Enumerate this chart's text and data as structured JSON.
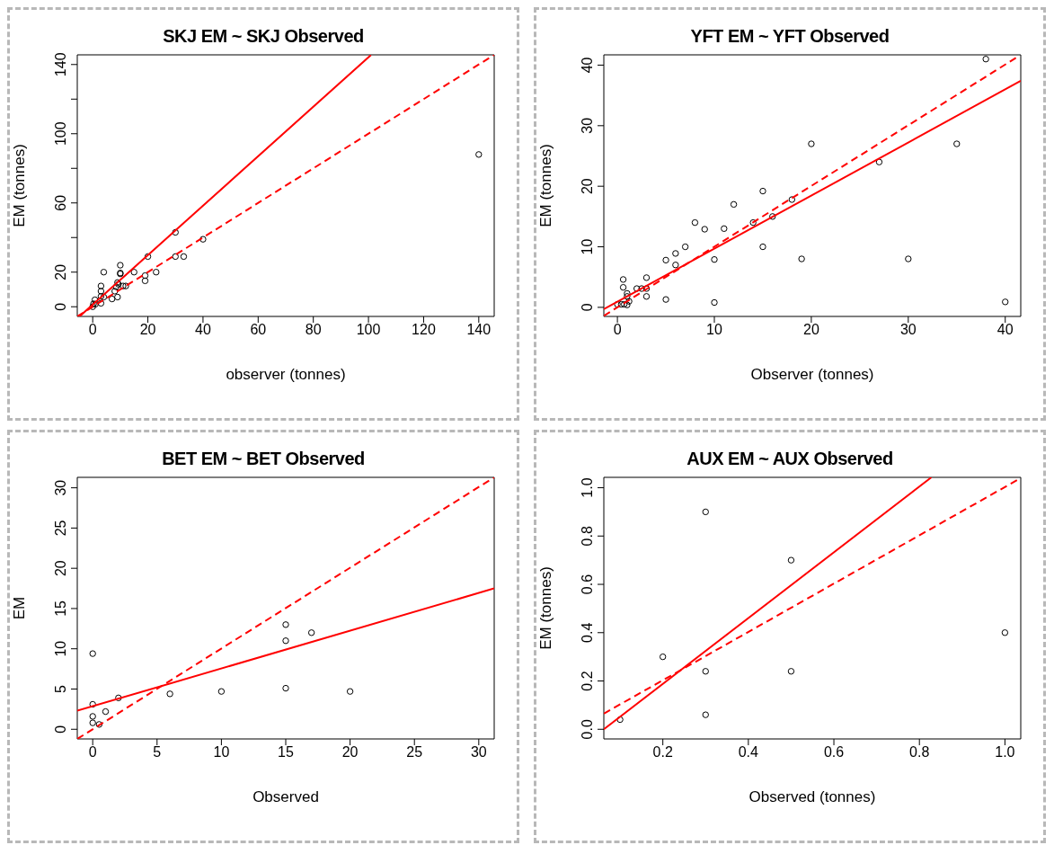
{
  "chart_data": [
    {
      "type": "scatter",
      "title": "SKJ EM ~ SKJ Observed",
      "xlabel": "observer (tonnes)",
      "ylabel": "EM (tonnes)",
      "xlim": [
        -5.6,
        145.6
      ],
      "ylim": [
        -5.6,
        145.6
      ],
      "xticks": [
        0,
        20,
        40,
        60,
        80,
        100,
        120,
        140
      ],
      "yticks": [
        0,
        20,
        {
          "value": 40,
          "label": null
        },
        60,
        {
          "value": 80,
          "label": null
        },
        100,
        {
          "value": 120,
          "label": null
        },
        140
      ],
      "series": [
        {
          "type": "scatter",
          "marker": "circle",
          "color": "#000000",
          "x": [
            140,
            30,
            40,
            20,
            30,
            33,
            23,
            15,
            19,
            19,
            10,
            10,
            10,
            4,
            3,
            3,
            3,
            9,
            9.3,
            11,
            12,
            9,
            7,
            8,
            4,
            3,
            0.8,
            0.3,
            0,
            1,
            8.5
          ],
          "values": [
            88,
            43,
            39,
            29,
            29,
            29,
            20,
            20,
            18,
            15,
            24,
            19.5,
            19,
            20,
            12,
            9,
            6,
            14,
            13,
            12,
            12,
            5.6,
            4.5,
            9,
            5.6,
            2,
            4,
            1.7,
            0,
            1.5,
            11.5
          ]
        },
        {
          "type": "line",
          "line_style": "solid",
          "marker": "none",
          "color": "#ff0000",
          "x": [
            -4.7,
            100.9
          ],
          "values": [
            -5.5,
            145.5
          ]
        },
        {
          "type": "line",
          "line_style": "dashed",
          "marker": "none",
          "color": "#ff0000",
          "x": [
            -5.6,
            145.6
          ],
          "values": [
            -5.6,
            145.6
          ]
        }
      ]
    },
    {
      "type": "scatter",
      "title": "YFT EM ~ YFT Observed",
      "xlabel": "Observer (tonnes)",
      "ylabel": "EM (tonnes)",
      "xlim": [
        -1.4,
        41.6
      ],
      "ylim": [
        -1.5,
        41.7
      ],
      "xticks": [
        0,
        10,
        20,
        30,
        40
      ],
      "yticks": [
        0,
        10,
        20,
        30,
        40
      ],
      "series": [
        {
          "type": "scatter",
          "marker": "circle",
          "color": "#000000",
          "x": [
            38,
            20,
            35,
            27,
            15,
            18,
            12,
            8,
            14,
            16,
            9,
            11,
            7,
            15,
            6,
            5,
            10,
            19,
            30,
            6,
            0.6,
            3,
            0.6,
            2,
            2.5,
            3,
            1,
            1,
            3,
            5,
            10,
            40,
            1.2,
            0,
            0.4,
            0.7,
            1
          ],
          "values": [
            41,
            27,
            27,
            24,
            19.2,
            17.8,
            17,
            14,
            14,
            15,
            12.9,
            13,
            10,
            10,
            8.9,
            7.8,
            7.9,
            8,
            8,
            7,
            4.6,
            4.9,
            3.3,
            3.1,
            3.1,
            3.1,
            2.3,
            1.8,
            1.8,
            1.3,
            0.8,
            0.9,
            1,
            0.5,
            0.5,
            0.5,
            0.4
          ]
        },
        {
          "type": "line",
          "line_style": "solid",
          "marker": "none",
          "color": "#ff0000",
          "x": [
            -1.4,
            41.6
          ],
          "values": [
            -0.3,
            37.4
          ]
        },
        {
          "type": "line",
          "line_style": "dashed",
          "marker": "none",
          "color": "#ff0000",
          "x": [
            -1.4,
            41.2
          ],
          "values": [
            -1.4,
            41.3
          ]
        }
      ]
    },
    {
      "type": "scatter",
      "title": "BET EM ~ BET Observed",
      "xlabel": "Observed",
      "ylabel": "EM",
      "xlim": [
        -1.2,
        31.2
      ],
      "ylim": [
        -1.2,
        31.3
      ],
      "xticks": [
        0,
        5,
        10,
        15,
        20,
        25,
        30
      ],
      "yticks": [
        0,
        5,
        10,
        15,
        20,
        25,
        30
      ],
      "series": [
        {
          "type": "scatter",
          "marker": "circle",
          "color": "#000000",
          "x": [
            0,
            0,
            0,
            0,
            0.5,
            1,
            2,
            6,
            10,
            15,
            15,
            15,
            17,
            20
          ],
          "values": [
            9.4,
            3.1,
            1.6,
            0.8,
            0.6,
            2.2,
            3.9,
            4.4,
            4.7,
            13,
            11,
            5.1,
            12,
            4.7
          ]
        },
        {
          "type": "line",
          "line_style": "solid",
          "marker": "none",
          "color": "#ff0000",
          "x": [
            -1.2,
            31.2
          ],
          "values": [
            2.3,
            17.5
          ]
        },
        {
          "type": "line",
          "line_style": "dashed",
          "marker": "none",
          "color": "#ff0000",
          "x": [
            -1.2,
            31.2
          ],
          "values": [
            -1.2,
            31.3
          ]
        }
      ]
    },
    {
      "type": "scatter",
      "title": "AUX EM ~ AUX Observed",
      "xlabel": "Observed (tonnes)",
      "ylabel": "EM (tonnes)",
      "xlim": [
        0.062,
        1.037
      ],
      "ylim": [
        -0.04,
        1.043
      ],
      "xticks": [
        {
          "value": 0.2,
          "label": "0.2"
        },
        {
          "value": 0.4,
          "label": "0.4"
        },
        {
          "value": 0.6,
          "label": "0.6"
        },
        {
          "value": 0.8,
          "label": "0.8"
        },
        {
          "value": 1,
          "label": "1.0"
        }
      ],
      "yticks": [
        {
          "value": 0,
          "label": "0.0"
        },
        {
          "value": 0.2,
          "label": "0.2"
        },
        {
          "value": 0.4,
          "label": "0.4"
        },
        {
          "value": 0.6,
          "label": "0.6"
        },
        {
          "value": 0.8,
          "label": "0.8"
        },
        {
          "value": 1,
          "label": "1.0"
        }
      ],
      "series": [
        {
          "type": "scatter",
          "marker": "circle",
          "color": "#000000",
          "x": [
            0.1,
            0.2,
            0.3,
            0.3,
            0.3,
            0.5,
            0.5,
            1
          ],
          "values": [
            0.04,
            0.3,
            0.9,
            0.24,
            0.06,
            0.7,
            0.24,
            0.4
          ]
        },
        {
          "type": "line",
          "line_style": "solid",
          "marker": "none",
          "color": "#ff0000",
          "x": [
            0.062,
            0.828
          ],
          "values": [
            0,
            1.043
          ]
        },
        {
          "type": "line",
          "line_style": "dashed",
          "marker": "none",
          "color": "#ff0000",
          "x": [
            0.062,
            1.037
          ],
          "values": [
            0.065,
            1.04
          ]
        }
      ]
    }
  ]
}
